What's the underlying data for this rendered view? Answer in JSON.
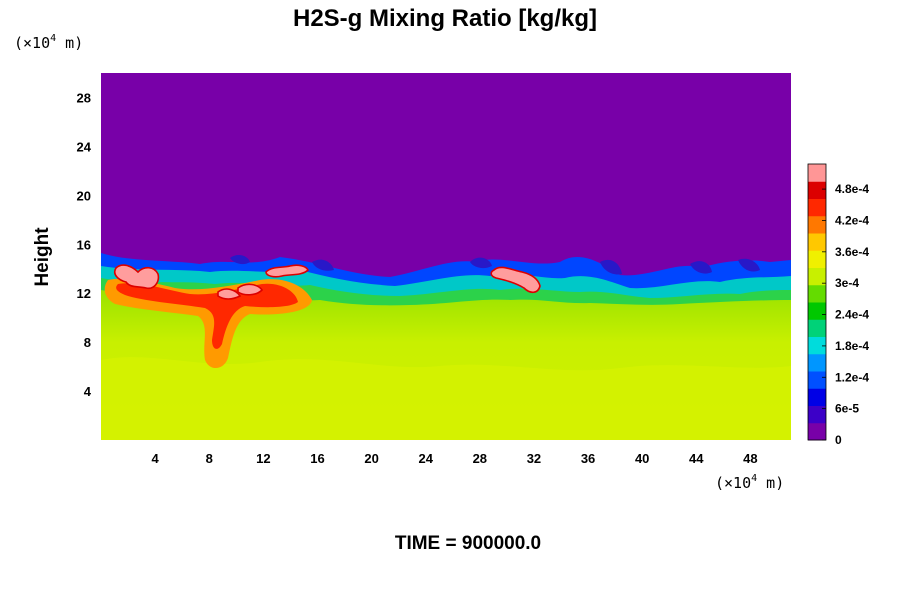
{
  "chart_data": {
    "type": "heatmap",
    "title": "H2S-g Mixing Ratio [kg/kg]",
    "ylabel": "Height",
    "xlabel": "",
    "x_unit": {
      "prefix": "(×10",
      "exp": "4",
      "suffix": " m)"
    },
    "y_unit": {
      "prefix": "(×10",
      "exp": "4",
      "suffix": " m)"
    },
    "xlim": [
      0,
      51
    ],
    "ylim": [
      0,
      30
    ],
    "x_ticks": [
      "4",
      "8",
      "12",
      "16",
      "20",
      "24",
      "28",
      "32",
      "36",
      "40",
      "44",
      "48"
    ],
    "x_tick_values": [
      4,
      8,
      12,
      16,
      20,
      24,
      28,
      32,
      36,
      40,
      44,
      48
    ],
    "y_ticks": [
      "4",
      "8",
      "12",
      "16",
      "20",
      "24",
      "28"
    ],
    "y_tick_values": [
      4,
      8,
      12,
      16,
      20,
      24,
      28
    ],
    "colorbar": {
      "range": [
        0,
        0.000528
      ],
      "ticks": [
        "0",
        "6e-5",
        "1.2e-4",
        "1.8e-4",
        "2.4e-4",
        "3e-4",
        "3.6e-4",
        "4.2e-4",
        "4.8e-4"
      ],
      "tick_values": [
        0,
        6e-05,
        0.00012,
        0.00018,
        0.00024,
        0.0003,
        0.00036,
        0.00042,
        0.00048
      ],
      "colors": [
        "#7800a8",
        "#3c00c8",
        "#0000e6",
        "#0050ff",
        "#0096ff",
        "#00dcdc",
        "#00d278",
        "#00c800",
        "#64dc00",
        "#c8f000",
        "#f0f000",
        "#ffc800",
        "#ff7800",
        "#ff2800",
        "#dc0000",
        "#ff9696"
      ]
    },
    "field_description": {
      "upper_value": 0,
      "lower_value": 0.00035,
      "interface_height_range": [
        12,
        15
      ],
      "high_concentration_patches_x": [
        1,
        3,
        6,
        9,
        11,
        13,
        14,
        28,
        31
      ],
      "patch_peak_value": 0.00052
    }
  },
  "time_label": "TIME = 900000.0"
}
